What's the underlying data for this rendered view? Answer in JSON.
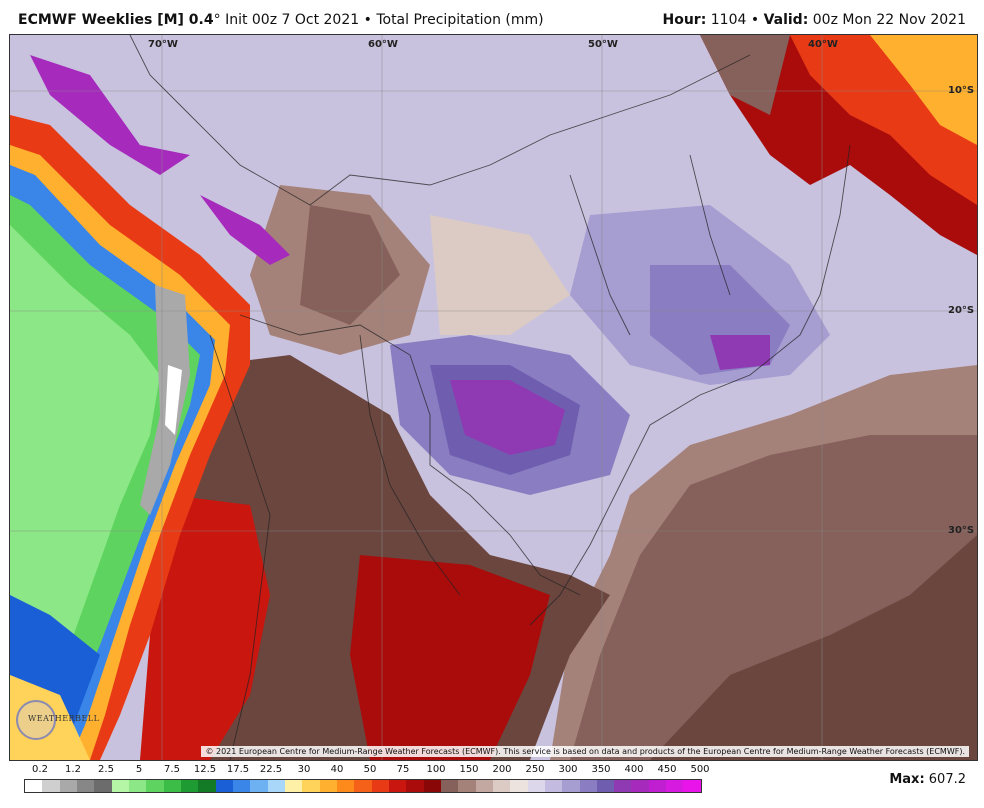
{
  "header": {
    "model": "ECMWF Weeklies [M] 0.4",
    "degree": "°",
    "init": "Init 00z 7 Oct 2021",
    "field": "Total Precipitation (mm)",
    "hour_label": "Hour:",
    "hour_value": "1104",
    "valid_label": "Valid:",
    "valid_value": "00z Mon 22 Nov 2021"
  },
  "map": {
    "longitude_labels": [
      "70°W",
      "60°W",
      "50°W",
      "40°W"
    ],
    "latitude_labels": [
      "10°S",
      "20°S",
      "30°S"
    ],
    "copyright": "© 2021 European Centre for Medium-Range Weather Forecasts (ECMWF). This service is based on data and products of the European Centre for Medium-Range Weather Forecasts (ECMWF).",
    "logo_text": "WEATHERBELL"
  },
  "legend": {
    "units": "mm",
    "ticks": [
      "0.2",
      "1.2",
      "2.5",
      "5",
      "7.5",
      "12.5",
      "17.5",
      "22.5",
      "30",
      "40",
      "50",
      "75",
      "100",
      "150",
      "200",
      "250",
      "300",
      "350",
      "400",
      "450",
      "500"
    ],
    "colors": [
      "#ffffff",
      "#cfcfcf",
      "#a9a9a9",
      "#878787",
      "#6c6c6c",
      "#b4f5a6",
      "#8ce886",
      "#5fd35f",
      "#3bbd47",
      "#1f9b33",
      "#137a26",
      "#1a5fd6",
      "#3a86e8",
      "#6db1f2",
      "#a9d7fa",
      "#fff0a8",
      "#ffd35a",
      "#ffb02e",
      "#ff8a1c",
      "#f6611a",
      "#e83a15",
      "#c9160f",
      "#a90c0b",
      "#8a0707",
      "#86605a",
      "#a58279",
      "#c2a8a0",
      "#dccbc4",
      "#ece3df",
      "#ddd7ec",
      "#c3bce0",
      "#a69dd1",
      "#8a7dc1",
      "#6f5db0",
      "#8f3ab2",
      "#a62bbd",
      "#bf1fd0",
      "#d71ae0",
      "#e914e9"
    ]
  },
  "max": {
    "label": "Max:",
    "value": "607.2"
  }
}
